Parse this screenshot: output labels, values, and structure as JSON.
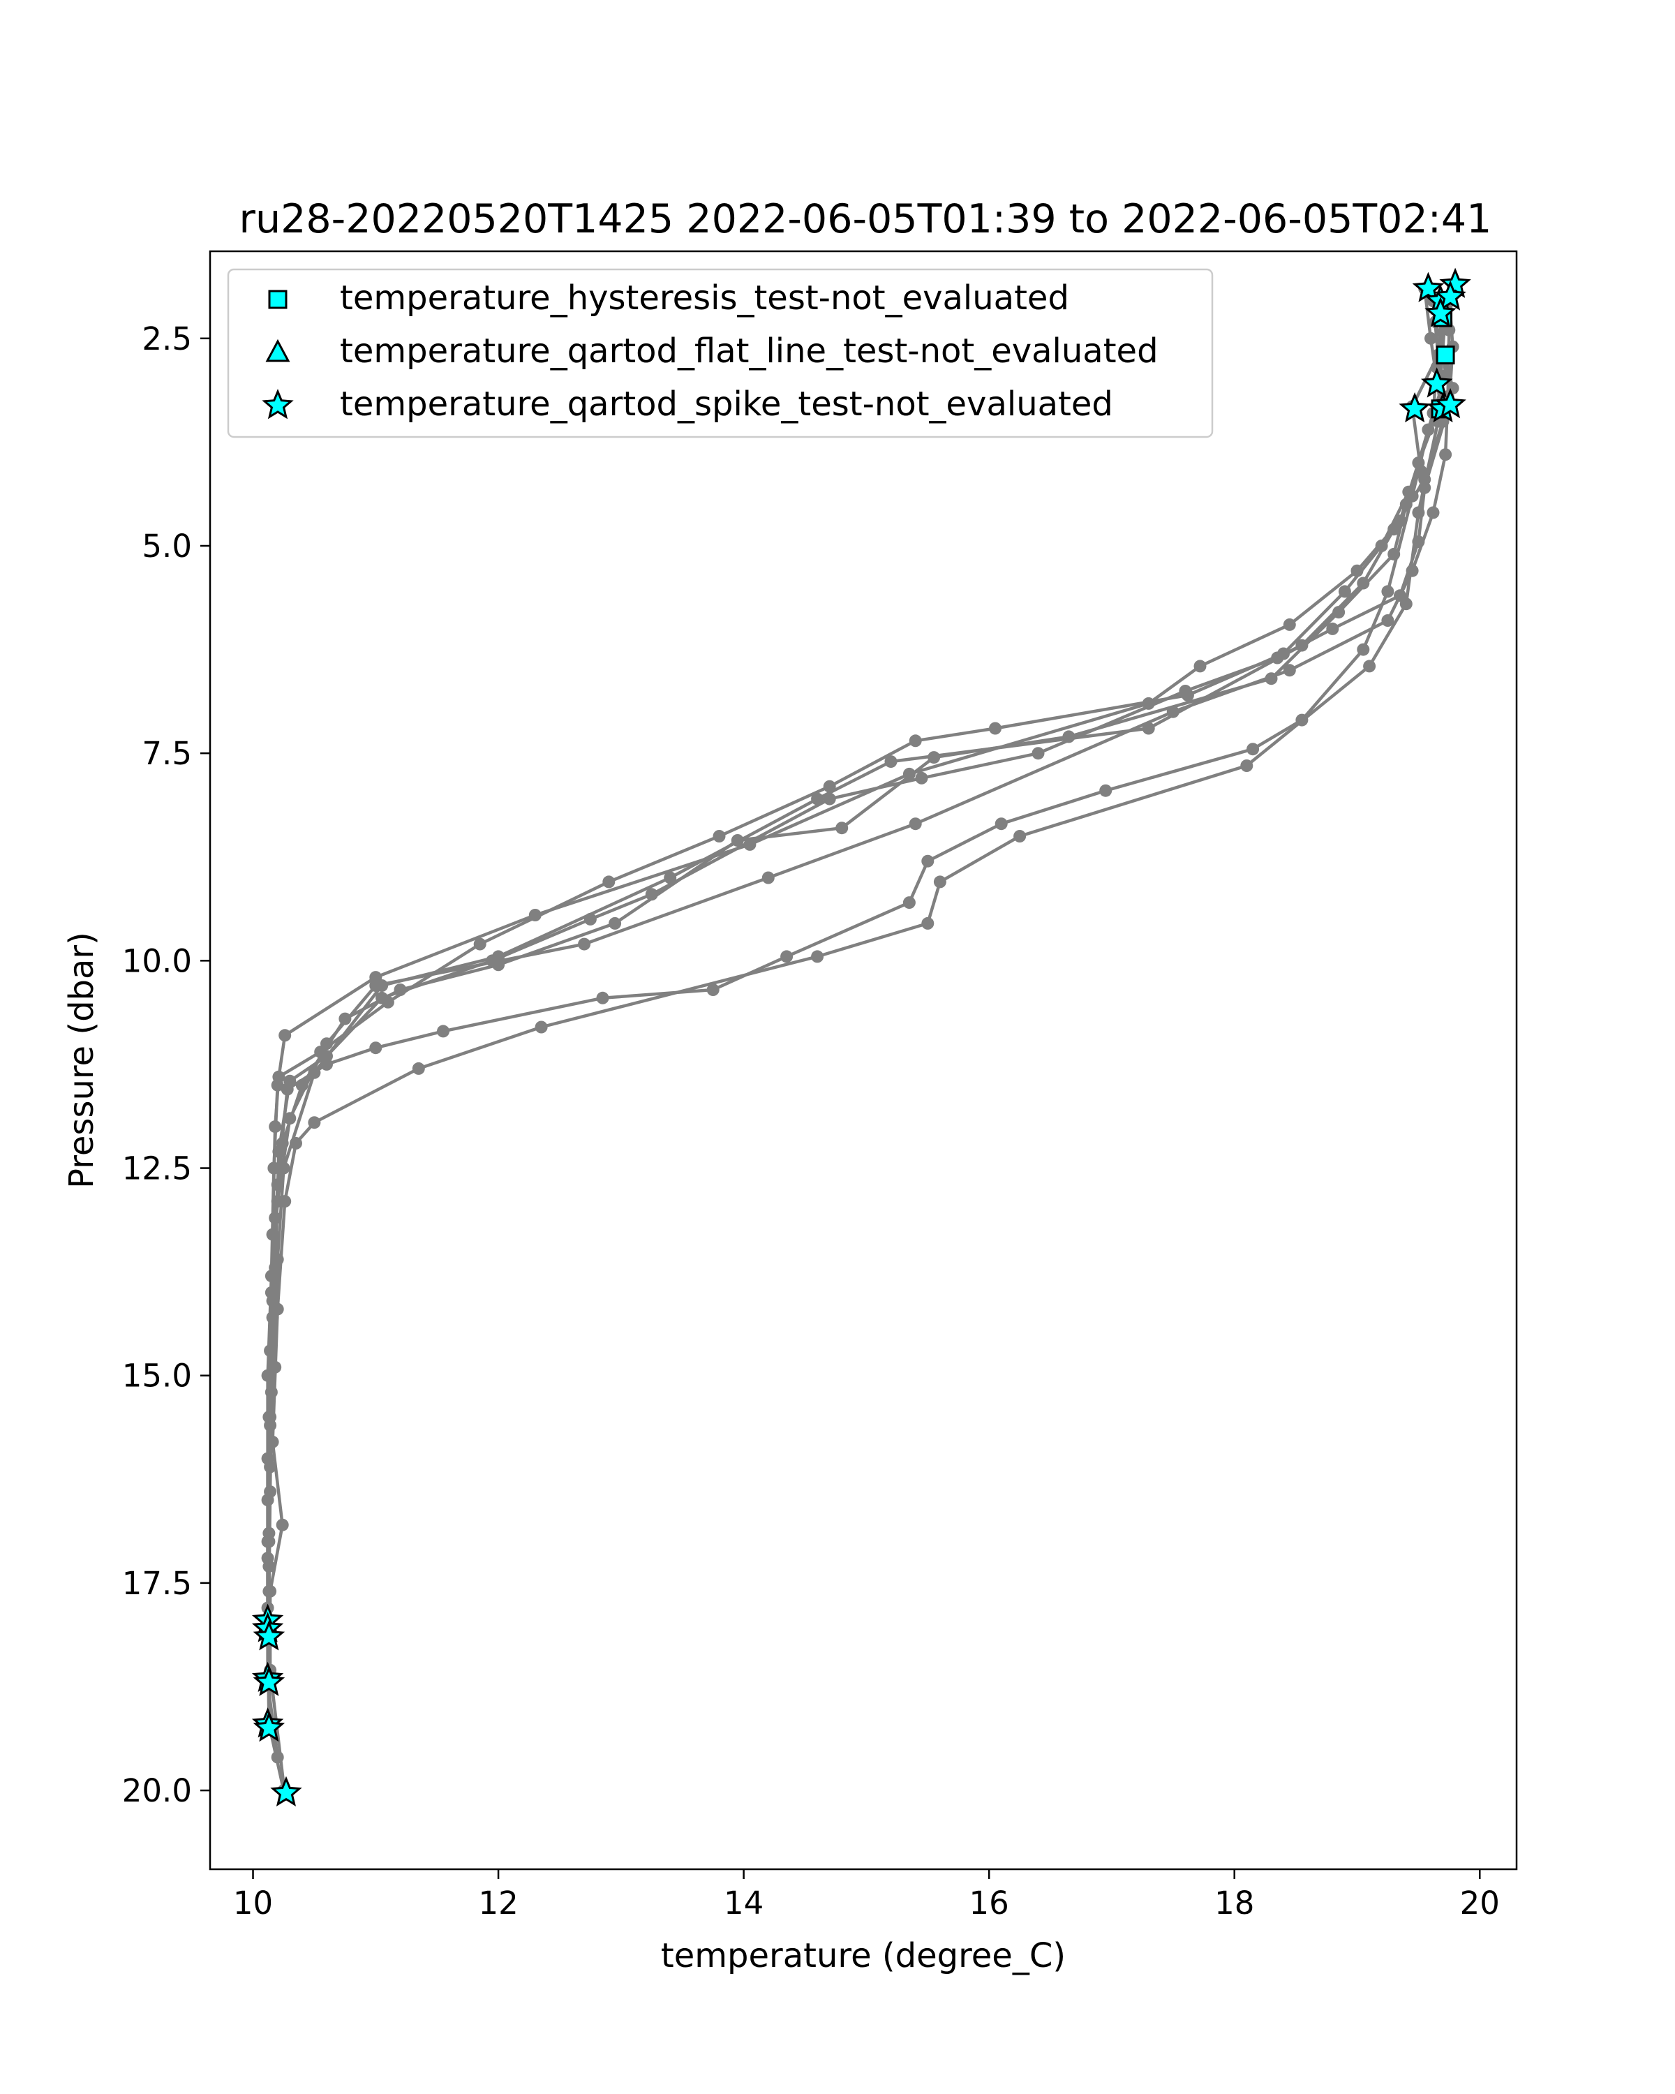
{
  "chart_data": {
    "type": "scatter",
    "title": "ru28-20220520T1425 2022-06-05T01:39 to 2022-06-05T02:41",
    "xlabel": "temperature (degree_C)",
    "ylabel": "Pressure (dbar)",
    "xlim": [
      9.65,
      20.3
    ],
    "ylim": [
      20.95,
      1.45
    ],
    "y_inverted": true,
    "xticks": [
      10,
      12,
      14,
      16,
      18,
      20
    ],
    "xtick_labels": [
      "10",
      "12",
      "14",
      "16",
      "18",
      "20"
    ],
    "yticks": [
      2.5,
      5.0,
      7.5,
      10.0,
      12.5,
      15.0,
      17.5,
      20.0
    ],
    "ytick_labels": [
      "2.5",
      "5.0",
      "7.5",
      "10.0",
      "12.5",
      "15.0",
      "17.5",
      "20.0"
    ],
    "grid": false,
    "legend_position": "top-left",
    "colors": {
      "profile_line": "#808080",
      "marker_fill": "#00ffff",
      "marker_edge": "#000000"
    },
    "legend": [
      {
        "label": "temperature_hysteresis_test-not_evaluated",
        "marker": "square"
      },
      {
        "label": "temperature_qartod_flat_line_test-not_evaluated",
        "marker": "triangle"
      },
      {
        "label": "temperature_qartod_spike_test-not_evaluated",
        "marker": "star"
      }
    ],
    "series": [
      {
        "points": [
          [
            19.78,
            1.85
          ],
          [
            19.75,
            2.4
          ],
          [
            19.74,
            3.2
          ],
          [
            19.72,
            3.9
          ],
          [
            19.62,
            4.6
          ],
          [
            19.45,
            5.3
          ],
          [
            19.25,
            5.9
          ],
          [
            18.45,
            6.5
          ],
          [
            17.5,
            7.0
          ],
          [
            15.4,
            8.35
          ],
          [
            14.2,
            9.0
          ],
          [
            12.7,
            9.8
          ],
          [
            11.0,
            10.3
          ],
          [
            10.6,
            11.0
          ],
          [
            10.3,
            11.9
          ],
          [
            10.2,
            12.9
          ],
          [
            10.15,
            14.0
          ],
          [
            10.13,
            15.5
          ],
          [
            10.12,
            17.0
          ],
          [
            10.12,
            18.0
          ],
          [
            10.13,
            19.2
          ],
          [
            10.25,
            20.0
          ]
        ]
      },
      {
        "points": [
          [
            19.55,
            1.9
          ],
          [
            19.6,
            2.5
          ],
          [
            19.68,
            3.3
          ],
          [
            19.5,
            4.0
          ],
          [
            19.35,
            4.7
          ],
          [
            19.0,
            5.3
          ],
          [
            18.45,
            5.95
          ],
          [
            17.72,
            6.45
          ],
          [
            17.3,
            6.9
          ],
          [
            15.35,
            7.75
          ],
          [
            14.05,
            8.6
          ],
          [
            12.3,
            9.45
          ],
          [
            11.0,
            10.2
          ],
          [
            10.26,
            10.9
          ],
          [
            10.2,
            11.5
          ],
          [
            10.17,
            12.5
          ],
          [
            10.15,
            13.8
          ],
          [
            10.12,
            15.0
          ],
          [
            10.12,
            16.5
          ],
          [
            10.12,
            17.8
          ],
          [
            10.12,
            18.7
          ],
          [
            10.2,
            19.6
          ]
        ]
      },
      {
        "points": [
          [
            19.72,
            2.2
          ],
          [
            19.68,
            3.0
          ],
          [
            19.7,
            3.5
          ],
          [
            19.55,
            4.2
          ],
          [
            19.3,
            4.8
          ],
          [
            19.05,
            5.45
          ],
          [
            18.55,
            6.2
          ],
          [
            17.3,
            7.2
          ],
          [
            15.2,
            7.6
          ],
          [
            14.6,
            8.05
          ],
          [
            13.4,
            9.0
          ],
          [
            12.0,
            9.95
          ],
          [
            11.05,
            10.3
          ],
          [
            10.5,
            11.35
          ],
          [
            10.25,
            12.5
          ],
          [
            10.2,
            13.6
          ],
          [
            10.18,
            14.9
          ],
          [
            10.14,
            16.1
          ],
          [
            10.13,
            17.3
          ],
          [
            10.13,
            18.15
          ]
        ]
      },
      {
        "points": [
          [
            19.62,
            2.05
          ],
          [
            19.66,
            2.7
          ],
          [
            19.45,
            3.32
          ],
          [
            19.52,
            4.1
          ],
          [
            19.42,
            4.35
          ],
          [
            19.2,
            5.0
          ],
          [
            18.9,
            5.55
          ],
          [
            18.4,
            6.3
          ],
          [
            17.62,
            6.8
          ],
          [
            16.05,
            7.2
          ],
          [
            15.4,
            7.35
          ],
          [
            14.7,
            7.9
          ],
          [
            13.8,
            8.5
          ],
          [
            12.9,
            9.05
          ],
          [
            11.85,
            9.8
          ],
          [
            11.1,
            10.5
          ],
          [
            10.55,
            11.1
          ],
          [
            10.21,
            11.4
          ],
          [
            10.18,
            12.0
          ],
          [
            10.16,
            13.3
          ],
          [
            10.14,
            14.7
          ],
          [
            10.12,
            16.0
          ],
          [
            10.12,
            17.2
          ],
          [
            10.12,
            17.95
          ]
        ]
      },
      {
        "points": [
          [
            19.7,
            2.1
          ],
          [
            19.65,
            2.85
          ],
          [
            19.62,
            3.4
          ],
          [
            19.4,
            4.5
          ],
          [
            19.3,
            5.1
          ],
          [
            18.85,
            5.8
          ],
          [
            18.3,
            6.6
          ],
          [
            16.65,
            7.3
          ],
          [
            15.55,
            7.55
          ],
          [
            14.8,
            8.4
          ],
          [
            13.95,
            8.55
          ],
          [
            12.95,
            9.55
          ],
          [
            12.0,
            10.05
          ],
          [
            11.2,
            10.35
          ],
          [
            10.75,
            10.7
          ],
          [
            10.4,
            11.5
          ],
          [
            10.24,
            12.2
          ],
          [
            10.18,
            13.1
          ],
          [
            10.16,
            14.3
          ],
          [
            10.14,
            15.6
          ],
          [
            10.13,
            16.9
          ],
          [
            10.13,
            18.05
          ]
        ]
      },
      {
        "points": [
          [
            19.75,
            2.0
          ],
          [
            19.78,
            2.6
          ],
          [
            19.75,
            3.3
          ],
          [
            19.55,
            4.3
          ],
          [
            19.5,
            4.95
          ],
          [
            19.35,
            5.6
          ],
          [
            18.8,
            6.0
          ],
          [
            18.35,
            6.35
          ],
          [
            17.6,
            6.75
          ],
          [
            16.4,
            7.5
          ],
          [
            15.45,
            7.8
          ],
          [
            14.7,
            8.05
          ],
          [
            13.25,
            9.2
          ],
          [
            12.75,
            9.5
          ],
          [
            11.95,
            10.0
          ],
          [
            11.05,
            10.45
          ],
          [
            10.6,
            11.15
          ],
          [
            10.3,
            11.45
          ],
          [
            10.21,
            12.3
          ],
          [
            10.18,
            13.7
          ],
          [
            10.15,
            15.2
          ],
          [
            10.14,
            16.4
          ],
          [
            10.13,
            17.6
          ],
          [
            10.13,
            18.65
          ]
        ]
      },
      {
        "points": [
          [
            19.68,
            2.15
          ],
          [
            19.72,
            2.95
          ],
          [
            19.58,
            3.6
          ],
          [
            19.45,
            4.4
          ],
          [
            19.25,
            5.55
          ],
          [
            19.05,
            6.25
          ],
          [
            18.55,
            7.1
          ],
          [
            18.15,
            7.45
          ],
          [
            16.95,
            7.95
          ],
          [
            16.1,
            8.35
          ],
          [
            15.5,
            8.8
          ],
          [
            15.35,
            9.3
          ],
          [
            14.35,
            9.95
          ],
          [
            13.75,
            10.35
          ],
          [
            12.85,
            10.45
          ],
          [
            11.55,
            10.85
          ],
          [
            11.0,
            11.05
          ],
          [
            10.6,
            11.25
          ],
          [
            10.28,
            11.55
          ],
          [
            10.2,
            12.7
          ],
          [
            10.16,
            14.1
          ],
          [
            10.14,
            15.5
          ],
          [
            10.13,
            17.0
          ],
          [
            10.13,
            18.2
          ],
          [
            10.14,
            19.25
          ]
        ]
      },
      {
        "points": [
          [
            19.64,
            2.3
          ],
          [
            19.78,
            3.1
          ],
          [
            19.66,
            3.5
          ],
          [
            19.5,
            4.6
          ],
          [
            19.4,
            5.7
          ],
          [
            19.1,
            6.45
          ],
          [
            18.1,
            7.65
          ],
          [
            16.25,
            8.5
          ],
          [
            15.6,
            9.05
          ],
          [
            15.5,
            9.55
          ],
          [
            14.6,
            9.95
          ],
          [
            12.35,
            10.8
          ],
          [
            11.35,
            11.3
          ],
          [
            10.5,
            11.95
          ],
          [
            10.35,
            12.2
          ],
          [
            10.26,
            12.9
          ],
          [
            10.2,
            14.2
          ],
          [
            10.16,
            15.8
          ],
          [
            10.24,
            16.8
          ],
          [
            10.14,
            17.6
          ],
          [
            10.14,
            18.55
          ],
          [
            10.26,
            20.05
          ]
        ]
      }
    ],
    "flag_markers": {
      "hysteresis": [
        [
          19.7,
          2.25
        ],
        [
          19.72,
          2.7
        ],
        [
          19.68,
          3.35
        ]
      ],
      "flat_line": [],
      "spike": [
        [
          19.8,
          1.85
        ],
        [
          19.58,
          1.9
        ],
        [
          19.68,
          2.05
        ],
        [
          19.76,
          2.0
        ],
        [
          19.68,
          2.2
        ],
        [
          19.65,
          3.05
        ],
        [
          19.47,
          3.35
        ],
        [
          19.7,
          3.35
        ],
        [
          19.76,
          3.3
        ],
        [
          10.12,
          17.95
        ],
        [
          10.12,
          18.05
        ],
        [
          10.13,
          18.15
        ],
        [
          10.12,
          18.65
        ],
        [
          10.13,
          18.7
        ],
        [
          10.12,
          19.2
        ],
        [
          10.13,
          19.25
        ],
        [
          10.27,
          20.03
        ]
      ]
    }
  }
}
